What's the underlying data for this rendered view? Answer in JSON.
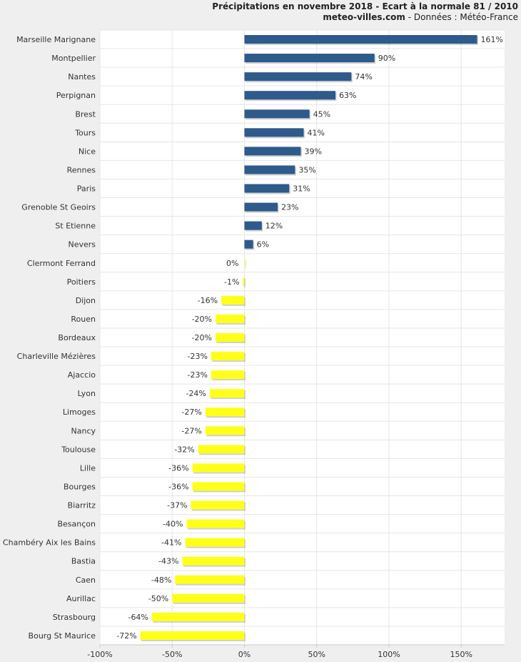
{
  "header": {
    "title": "Précipitations en novembre 2018 - Ecart à la normale 81 / 2010",
    "site": "meteo-villes.com",
    "source": " - Données : Météo-France"
  },
  "chart_data": {
    "type": "bar",
    "orientation": "horizontal",
    "categories": [
      "Marseille Marignane",
      "Montpellier",
      "Nantes",
      "Perpignan",
      "Brest",
      "Tours",
      "Nice",
      "Rennes",
      "Paris",
      "Grenoble St Geoirs",
      "St Etienne",
      "Nevers",
      "Clermont Ferrand",
      "Poitiers",
      "Dijon",
      "Rouen",
      "Bordeaux",
      "Charleville Mézières",
      "Ajaccio",
      "Lyon",
      "Limoges",
      "Nancy",
      "Toulouse",
      "Lille",
      "Bourges",
      "Biarritz",
      "Besançon",
      "Chambéry Aix les Bains",
      "Bastia",
      "Caen",
      "Aurillac",
      "Strasbourg",
      "Bourg St Maurice"
    ],
    "values": [
      161,
      90,
      74,
      63,
      45,
      41,
      39,
      35,
      31,
      23,
      12,
      6,
      0,
      -1,
      -16,
      -20,
      -20,
      -23,
      -23,
      -24,
      -27,
      -27,
      -32,
      -36,
      -36,
      -37,
      -40,
      -41,
      -43,
      -48,
      -50,
      -64,
      -72
    ],
    "data_labels": [
      "161%",
      "90%",
      "74%",
      "63%",
      "45%",
      "41%",
      "39%",
      "35%",
      "31%",
      "23%",
      "12%",
      "6%",
      "0%",
      "-1%",
      "-16%",
      "-20%",
      "-20%",
      "-23%",
      "-23%",
      "-24%",
      "-27%",
      "-27%",
      "-32%",
      "-36%",
      "-36%",
      "-37%",
      "-40%",
      "-41%",
      "-43%",
      "-48%",
      "-50%",
      "-64%",
      "-72%"
    ],
    "xlim": [
      -100,
      180
    ],
    "x_ticks": [
      -100,
      -50,
      0,
      50,
      100,
      150
    ],
    "x_tick_labels": [
      "-100%",
      "-50%",
      "0%",
      "50%",
      "100%",
      "150%"
    ],
    "colors": {
      "positive": "#2e5a8c",
      "negative": "#ffff1a"
    },
    "grid": true
  }
}
